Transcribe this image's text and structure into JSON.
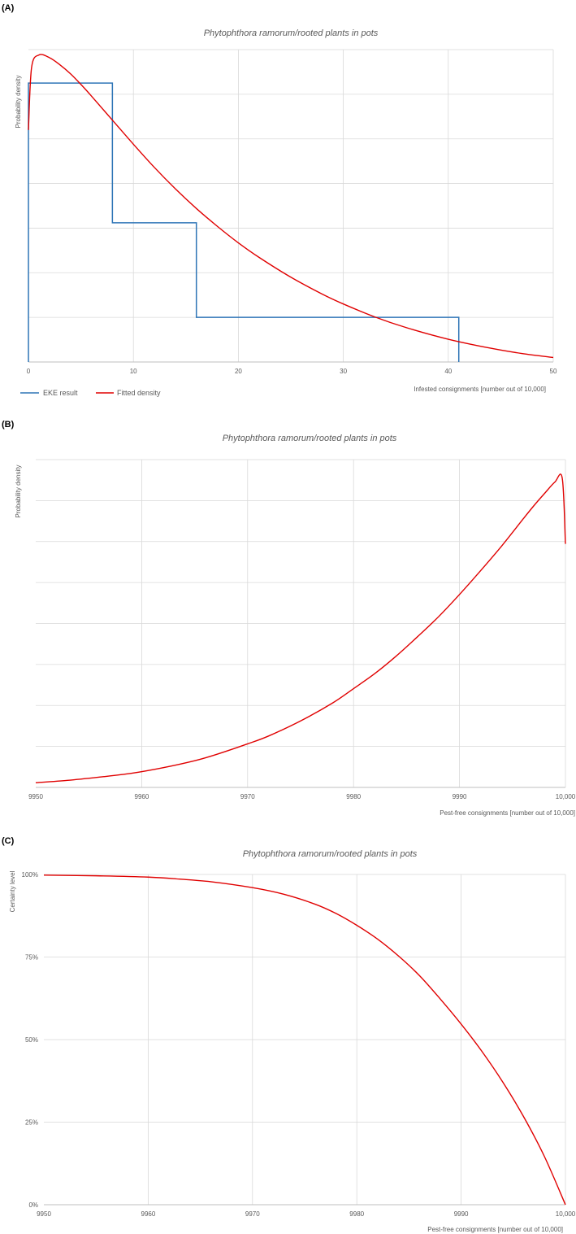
{
  "chart_data": [
    {
      "panel_label": "(A)",
      "type": "line",
      "title": "Phytophthora ramorum/rooted plants in pots",
      "xlabel": "Infested consignments [number out of 10,000]",
      "ylabel": "Probability density",
      "xlim": [
        0,
        50
      ],
      "ylim": [
        0,
        0.07
      ],
      "x_ticks": [
        "0",
        "10",
        "20",
        "30",
        "40",
        "50"
      ],
      "grid": true,
      "legend_position": "bottom-left",
      "series": [
        {
          "name": "EKE result",
          "kind": "step",
          "color": "#2e75b6",
          "steps": [
            {
              "x0": 0,
              "x1": 8,
              "y": 0.0625
            },
            {
              "x0": 8,
              "x1": 16,
              "y": 0.0312
            },
            {
              "x0": 16,
              "x1": 41,
              "y": 0.01
            }
          ]
        },
        {
          "name": "Fitted density",
          "kind": "line",
          "color": "#e00000",
          "x": [
            0,
            0.3,
            1,
            2,
            3,
            4,
            5,
            6,
            8,
            10,
            12,
            14,
            16,
            18,
            20,
            22,
            25,
            28,
            30,
            33,
            36,
            40,
            44,
            47,
            50
          ],
          "y": [
            0.052,
            0.066,
            0.0688,
            0.0682,
            0.0666,
            0.0646,
            0.0622,
            0.0596,
            0.0542,
            0.0488,
            0.0436,
            0.0388,
            0.0344,
            0.0304,
            0.0267,
            0.0234,
            0.019,
            0.0152,
            0.013,
            0.0101,
            0.0077,
            0.0051,
            0.0031,
            0.0019,
            0.001
          ]
        }
      ]
    },
    {
      "panel_label": "(B)",
      "type": "line",
      "title": "Phytophthora ramorum/rooted plants in pots",
      "xlabel": "Pest-free consignments [number out of 10,000]",
      "ylabel": "Probability density",
      "xlim": [
        9950,
        10000
      ],
      "ylim": [
        0,
        0.07
      ],
      "x_ticks": [
        "9950",
        "9960",
        "9970",
        "9980",
        "9990",
        "10,000"
      ],
      "grid": true,
      "series": [
        {
          "name": "Fitted density",
          "kind": "line",
          "color": "#e00000",
          "x": [
            9950,
            9953,
            9956,
            9959,
            9962,
            9965,
            9967,
            9970,
            9972,
            9975,
            9978,
            9980,
            9982,
            9984,
            9986,
            9988,
            9990,
            9992,
            9994,
            9996,
            9997,
            9998,
            9999,
            9999.7,
            10000
          ],
          "y": [
            0.001,
            0.0015,
            0.0022,
            0.003,
            0.0042,
            0.0057,
            0.007,
            0.0093,
            0.011,
            0.0142,
            0.018,
            0.0211,
            0.0243,
            0.028,
            0.0321,
            0.0364,
            0.0412,
            0.0463,
            0.0516,
            0.0573,
            0.0601,
            0.0627,
            0.0652,
            0.066,
            0.052
          ]
        }
      ]
    },
    {
      "panel_label": "(C)",
      "type": "line",
      "title": "Phytophthora ramorum/rooted plants in pots",
      "xlabel": "Pest-free consignments [number out of 10,000]",
      "ylabel": "Certainty level",
      "xlim": [
        9950,
        10000
      ],
      "ylim": [
        0,
        100
      ],
      "x_ticks": [
        "9950",
        "9960",
        "9970",
        "9980",
        "9990",
        "10,000"
      ],
      "y_ticks": [
        "0%",
        "25%",
        "50%",
        "75%",
        "100%"
      ],
      "grid": true,
      "series": [
        {
          "name": "Certainty level",
          "kind": "line",
          "color": "#e00000",
          "x": [
            9950,
            9955,
            9960,
            9963,
            9966,
            9970,
            9973,
            9976,
            9978,
            9980,
            9982,
            9984,
            9986,
            9988,
            9990,
            9992,
            9994,
            9996,
            9998,
            10000
          ],
          "y": [
            99.8,
            99.6,
            99.2,
            98.6,
            97.8,
            96,
            94,
            91,
            88.2,
            84.6,
            80.4,
            75.3,
            69.4,
            62.3,
            54.7,
            46.4,
            37.1,
            26.6,
            14.5,
            0
          ]
        }
      ]
    }
  ]
}
